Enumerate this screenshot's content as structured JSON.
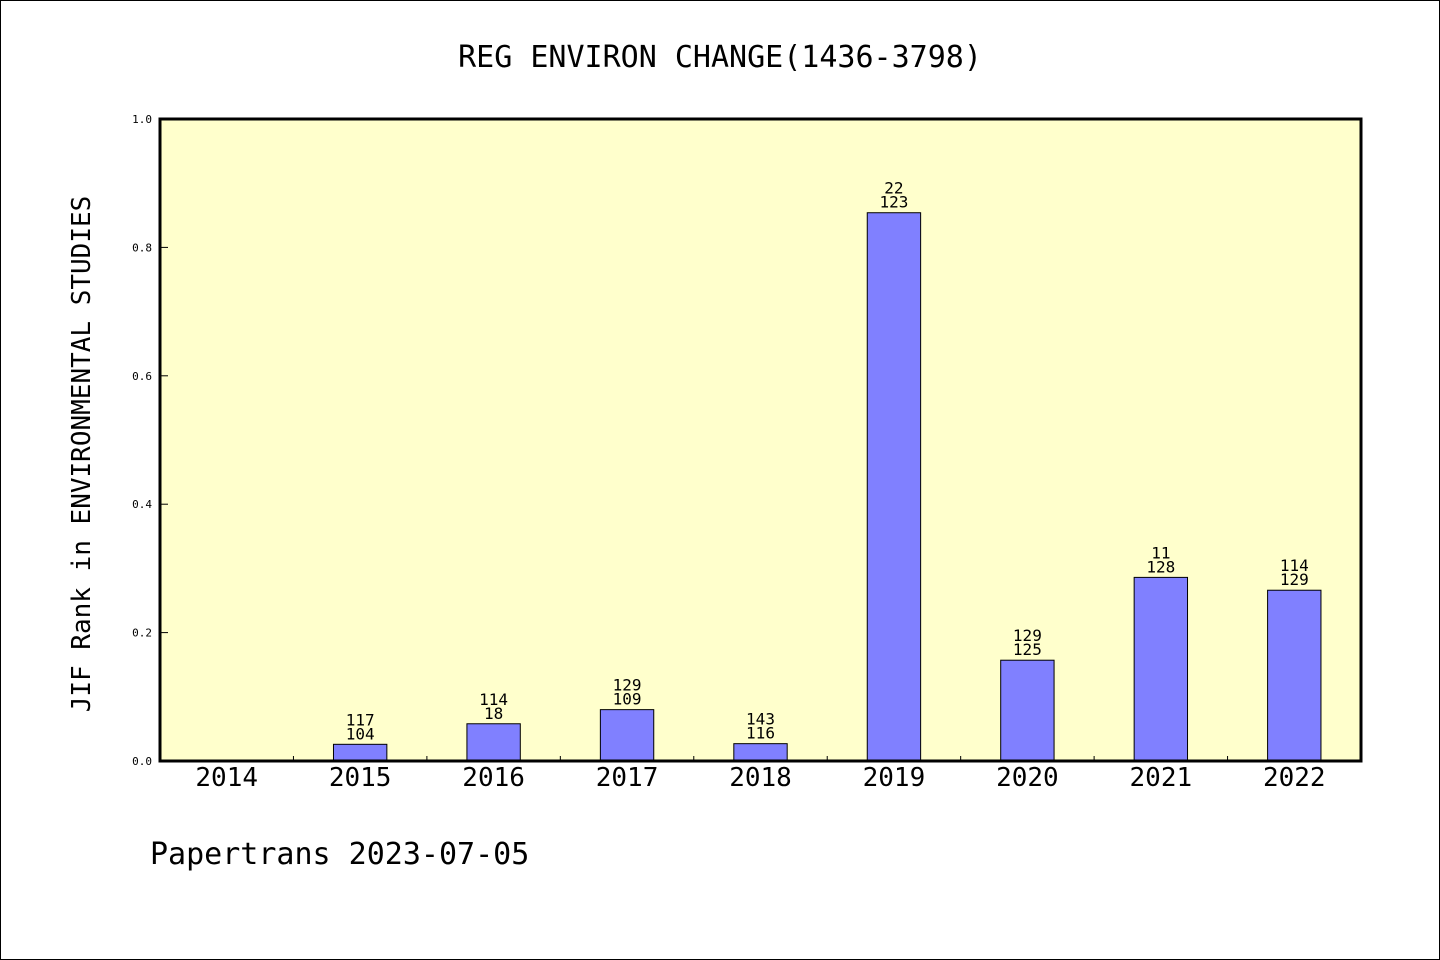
{
  "chart_data": {
    "type": "bar",
    "title": "REG ENVIRON CHANGE(1436-3798)",
    "ylabel": "JIF Rank in ENVIRONMENTAL STUDIES",
    "xlabel": "",
    "ylim": [
      0,
      1.0
    ],
    "yticks": [
      "0.0",
      "0.2",
      "0.4",
      "0.6",
      "0.8",
      "1.0"
    ],
    "categories": [
      "2014",
      "2015",
      "2016",
      "2017",
      "2018",
      "2019",
      "2020",
      "2021",
      "2022"
    ],
    "values": [
      null,
      0.026,
      0.058,
      0.08,
      0.027,
      0.854,
      0.157,
      0.286,
      0.266
    ],
    "labels_top": [
      "",
      "117",
      "114",
      "129",
      "143",
      "22",
      "129",
      "11",
      "114"
    ],
    "labels_bottom": [
      "",
      "104",
      "18",
      "109",
      "116",
      "123",
      "125",
      "128",
      "129"
    ],
    "grid": false,
    "colors": {
      "plot_bg": "#ffffcc",
      "bar": "#8080ff",
      "border": "#000000"
    }
  },
  "footer": {
    "credit": "Papertrans 2023-07-05"
  }
}
